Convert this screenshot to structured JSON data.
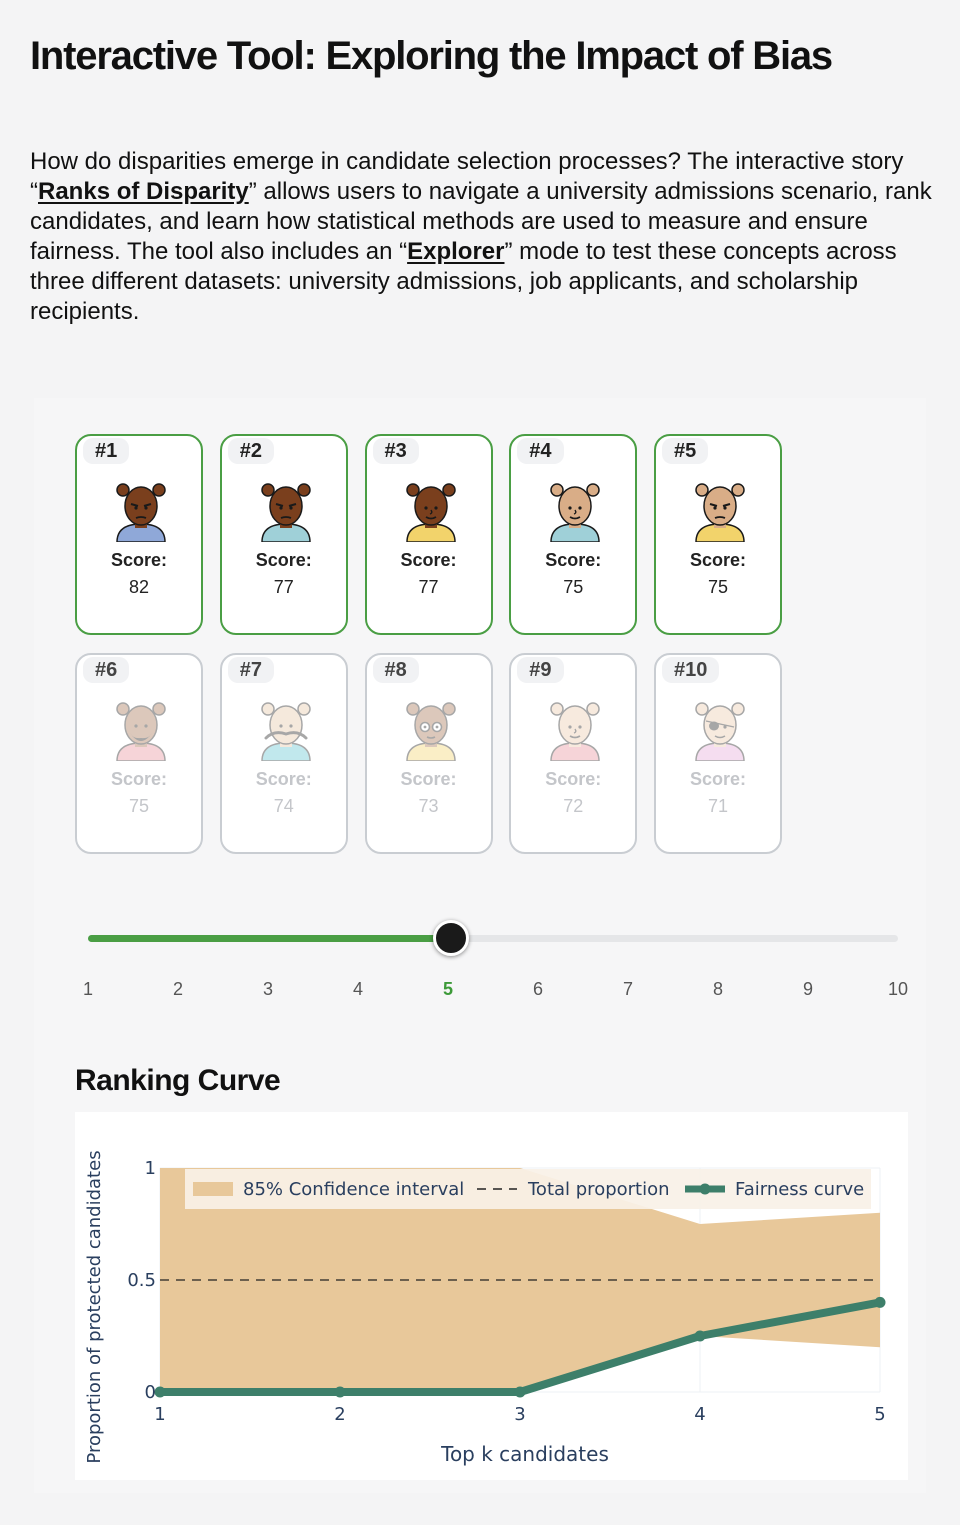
{
  "page": {
    "title": "Interactive Tool: Exploring the Impact of Bias",
    "intro": {
      "p1": "How do disparities emerge in candidate selection processes? The interactive story “",
      "link1": "Ranks of Disparity",
      "p2": "” allows users to navigate a university admissions scenario, rank candidates, and learn how statistical methods are used to measure and ensure fairness. The tool also includes an “",
      "link2": "Explorer",
      "p3": "” mode to test these concepts across three different datasets: university admissions, job applicants, and scholarship recipients."
    }
  },
  "cards": {
    "score_label": "Score:",
    "items": [
      {
        "rank": "#1",
        "score": "82",
        "selected": true,
        "skin": "#7a3f1d",
        "shirt": "#8fa8d8",
        "face": "stern"
      },
      {
        "rank": "#2",
        "score": "77",
        "selected": true,
        "skin": "#7a3f1d",
        "shirt": "#9fd0d8",
        "face": "stern"
      },
      {
        "rank": "#3",
        "score": "77",
        "selected": true,
        "skin": "#7a3f1d",
        "shirt": "#f2d36b",
        "face": "smile"
      },
      {
        "rank": "#4",
        "score": "75",
        "selected": true,
        "skin": "#d9ad87",
        "shirt": "#9fd0d8",
        "face": "smile"
      },
      {
        "rank": "#5",
        "score": "75",
        "selected": true,
        "skin": "#d9ad87",
        "shirt": "#f2d36b",
        "face": "stern"
      },
      {
        "rank": "#6",
        "score": "75",
        "selected": false,
        "skin": "#a5714f",
        "shirt": "#e8909a",
        "face": "beard"
      },
      {
        "rank": "#7",
        "score": "74",
        "selected": false,
        "skin": "#e6c7a5",
        "shirt": "#5ec3d2",
        "face": "mustache"
      },
      {
        "rank": "#8",
        "score": "73",
        "selected": false,
        "skin": "#a5714f",
        "shirt": "#f2d36b",
        "face": "glasses"
      },
      {
        "rank": "#9",
        "score": "72",
        "selected": false,
        "skin": "#ecc9ab",
        "shirt": "#e8909a",
        "face": "smile"
      },
      {
        "rank": "#10",
        "score": "71",
        "selected": false,
        "skin": "#ecc9ab",
        "shirt": "#e7a8d8",
        "face": "eyepatch"
      }
    ]
  },
  "slider": {
    "min": 1,
    "max": 10,
    "value": 5,
    "ticks": [
      "1",
      "2",
      "3",
      "4",
      "5",
      "6",
      "7",
      "8",
      "9",
      "10"
    ],
    "fill_color": "#4a9e44"
  },
  "ranking_curve": {
    "title": "Ranking Curve"
  },
  "chart_data": {
    "type": "line",
    "xlabel": "Top k candidates",
    "ylabel": "Proportion of protected candidates",
    "x": [
      1,
      2,
      3,
      4,
      5
    ],
    "xlim": [
      1,
      5
    ],
    "ylim": [
      0,
      1
    ],
    "x_ticks": [
      "1",
      "2",
      "3",
      "4",
      "5"
    ],
    "y_ticks": [
      {
        "value": 0,
        "label": "0"
      },
      {
        "value": 0.5,
        "label": "0.5"
      },
      {
        "value": 1,
        "label": "1"
      }
    ],
    "grid": true,
    "legend_position": "top",
    "series": [
      {
        "name": "85% Confidence interval",
        "kind": "band",
        "color": "#e8c89a",
        "lower": [
          0,
          0,
          0,
          0.25,
          0.2
        ],
        "upper": [
          1,
          1,
          1,
          0.75,
          0.8
        ]
      },
      {
        "name": "Total proportion",
        "kind": "dashed",
        "color": "#222222",
        "values": [
          0.5,
          0.5,
          0.5,
          0.5,
          0.5
        ]
      },
      {
        "name": "Fairness curve",
        "kind": "line",
        "color": "#3d7f6a",
        "values": [
          0,
          0,
          0,
          0.25,
          0.4
        ]
      }
    ]
  }
}
